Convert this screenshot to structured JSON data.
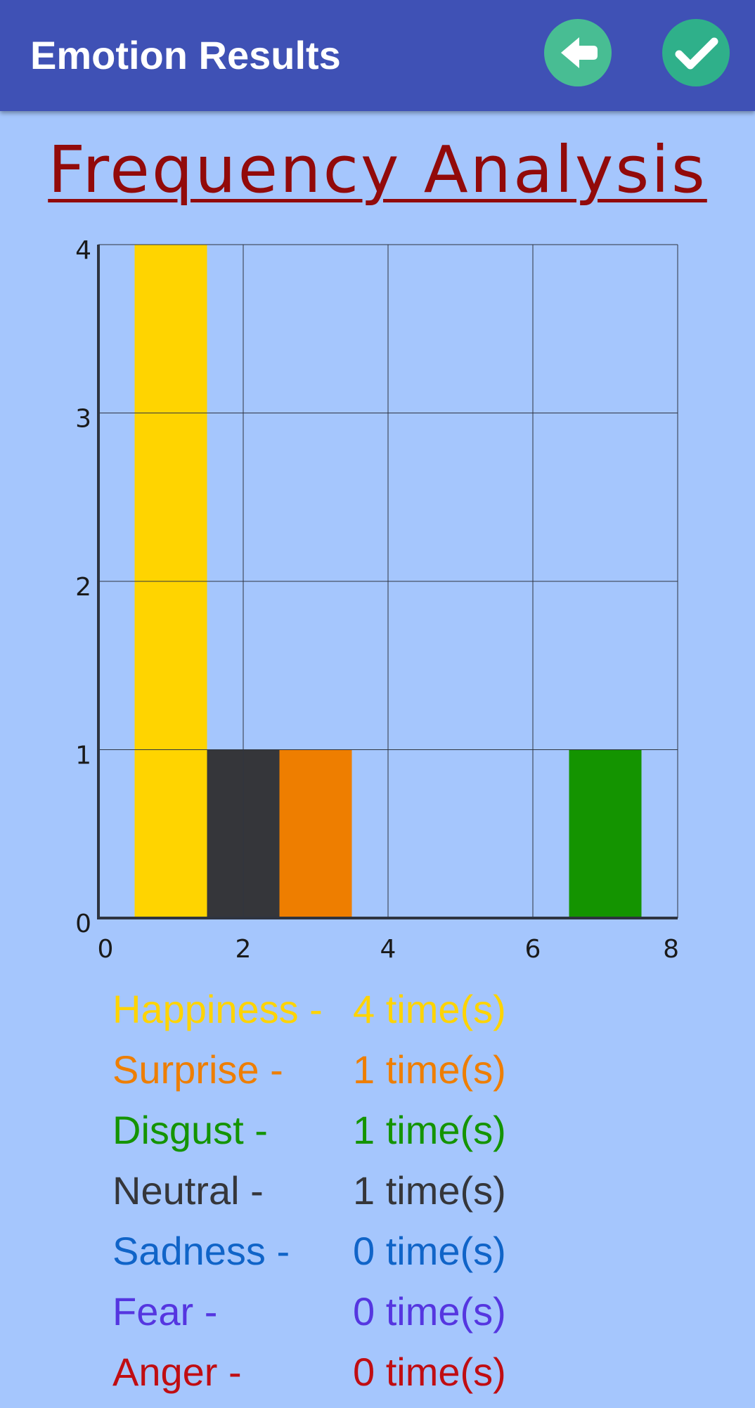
{
  "app_bar": {
    "title": "Emotion Results",
    "back_icon": "arrow-left-icon",
    "done_icon": "checkmark-icon",
    "back_button_color": "#48bd93",
    "done_button_color": "#2fb08a"
  },
  "page_title": "Frequency Analysis",
  "chart_data": {
    "type": "bar",
    "title": "",
    "xlabel": "",
    "ylabel": "",
    "xlim": [
      0,
      8
    ],
    "ylim": [
      0,
      4
    ],
    "x_ticks": [
      "0",
      "2",
      "4",
      "6",
      "8"
    ],
    "y_ticks": [
      "0",
      "1",
      "2",
      "3",
      "4"
    ],
    "grid": true,
    "bars": [
      {
        "x": 1,
        "value": 4,
        "color": "#ffd400"
      },
      {
        "x": 2,
        "value": 1,
        "color": "#35363a"
      },
      {
        "x": 3,
        "value": 1,
        "color": "#ee7e00"
      },
      {
        "x": 4,
        "value": 0,
        "color": "#1064c8"
      },
      {
        "x": 5,
        "value": 0,
        "color": "#5536e0"
      },
      {
        "x": 6,
        "value": 0,
        "color": "#c00d12"
      },
      {
        "x": 7,
        "value": 1,
        "color": "#149400"
      }
    ]
  },
  "legend": [
    {
      "label": "Happiness -",
      "count": "4 time(s)",
      "color": "#ffd400"
    },
    {
      "label": "Surprise -",
      "count": "1 time(s)",
      "color": "#ee7e00"
    },
    {
      "label": "Disgust -",
      "count": "1 time(s)",
      "color": "#149400"
    },
    {
      "label": "Neutral -",
      "count": "1 time(s)",
      "color": "#35363a"
    },
    {
      "label": "Sadness -",
      "count": "0 time(s)",
      "color": "#1064c8"
    },
    {
      "label": "Fear -",
      "count": "0 time(s)",
      "color": "#5536e0"
    },
    {
      "label": "Anger -",
      "count": "0 time(s)",
      "color": "#c00d12"
    }
  ]
}
